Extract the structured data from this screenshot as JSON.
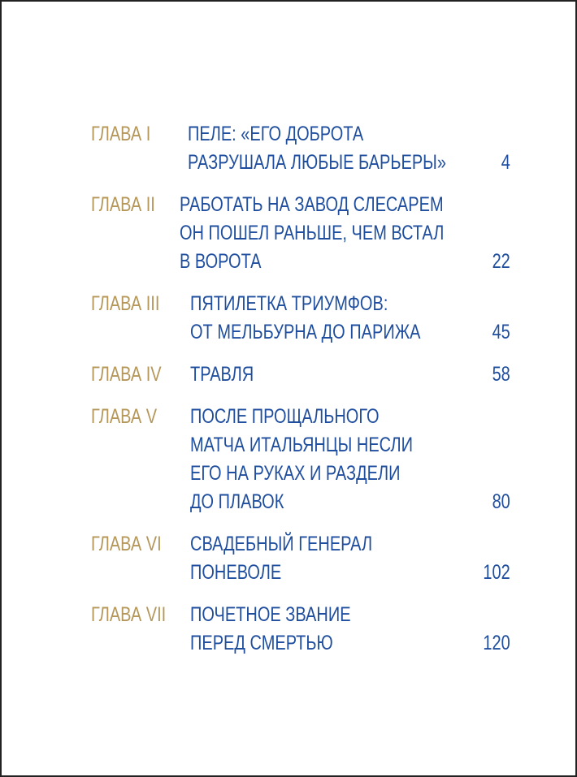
{
  "toc": [
    {
      "label": "ГЛАВА I",
      "lines": [
        "ПЕЛЕ: «ЕГО ДОБРОТА",
        "РАЗРУШАЛА ЛЮБЫЕ БАРЬЕРЫ»"
      ],
      "page": "4"
    },
    {
      "label": "ГЛАВА II",
      "lines": [
        "РАБОТАТЬ НА ЗАВОД СЛЕСАРЕМ",
        "ОН ПОШЕЛ РАНЬШЕ, ЧЕМ ВСТАЛ",
        "В ВОРОТА"
      ],
      "page": "22"
    },
    {
      "label": "ГЛАВА III",
      "lines": [
        "ПЯТИЛЕТКА ТРИУМФОВ:",
        "ОТ МЕЛЬБУРНА ДО ПАРИЖА"
      ],
      "page": "45"
    },
    {
      "label": "ГЛАВА IV",
      "lines": [
        "ТРАВЛЯ"
      ],
      "page": "58"
    },
    {
      "label": "ГЛАВА V",
      "lines": [
        "ПОСЛЕ ПРОЩАЛЬНОГО",
        "МАТЧА ИТАЛЬЯНЦЫ НЕСЛИ",
        "ЕГО НА РУКАХ И РАЗДЕЛИ",
        "ДО ПЛАВОК"
      ],
      "page": "80"
    },
    {
      "label": "ГЛАВА VI",
      "lines": [
        "СВАДЕБНЫЙ ГЕНЕРАЛ",
        "ПОНЕВОЛЕ"
      ],
      "page": "102"
    },
    {
      "label": "ГЛАВА VII",
      "lines": [
        "ПОЧЕТНОЕ ЗВАНИЕ",
        "ПЕРЕД СМЕРТЬЮ"
      ],
      "page": "120"
    }
  ],
  "colors": {
    "label": "#b5975a",
    "title": "#1f4e9e"
  }
}
